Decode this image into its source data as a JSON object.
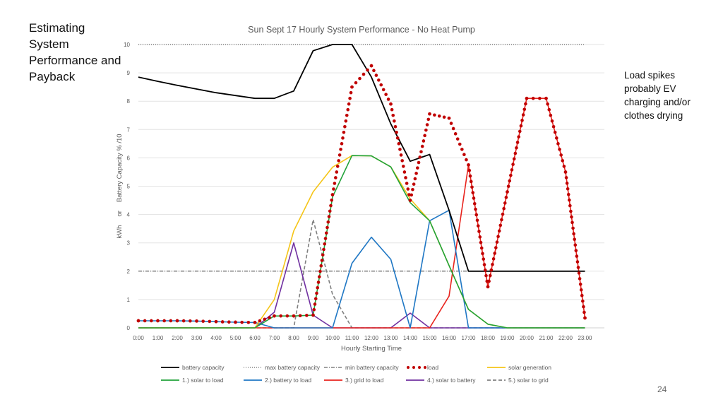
{
  "slide": {
    "title": "Estimating System Performance and Payback",
    "note": "Load spikes probably EV charging and/or clothes drying",
    "page_number": "24"
  },
  "chart_data": {
    "type": "line",
    "title": "Sun Sept 17 Hourly System Performance - No Heat Pump",
    "xlabel": "Hourly Starting Time",
    "ylabel": "kWh   or   Battery Capacity % /10",
    "ylabel_parts": [
      "kWh",
      "or",
      "Battery Capacity % /10"
    ],
    "ylim": [
      0,
      10
    ],
    "yticks": [
      0,
      1,
      2,
      3,
      4,
      5,
      6,
      7,
      8,
      9,
      10
    ],
    "grid": true,
    "legend_position": "bottom",
    "categories": [
      "0:00",
      "1:00",
      "2:00",
      "3:00",
      "4:00",
      "5:00",
      "6:00",
      "7:00",
      "8:00",
      "9:00",
      "10:00",
      "11:00",
      "12:00",
      "13:00",
      "14:00",
      "15:00",
      "16:00",
      "17:00",
      "18:00",
      "19:00",
      "20:00",
      "21:00",
      "22:00",
      "23:00"
    ],
    "series": [
      {
        "name": "battery capacity",
        "color": "#000000",
        "style": "solid",
        "values": [
          8.85,
          8.7,
          8.56,
          8.43,
          8.3,
          8.2,
          8.1,
          8.1,
          8.36,
          9.78,
          10.0,
          10.0,
          8.85,
          7.2,
          5.88,
          6.12,
          4.15,
          2.0,
          2.0,
          2.0,
          2.0,
          2.0,
          2.0,
          2.0
        ]
      },
      {
        "name": "max battery capacity",
        "color": "#404040",
        "style": "dotted",
        "values": [
          10,
          10,
          10,
          10,
          10,
          10,
          10,
          10,
          10,
          10,
          10,
          10,
          10,
          10,
          10,
          10,
          10,
          10,
          10,
          10,
          10,
          10,
          10,
          10
        ]
      },
      {
        "name": "min battery capacity",
        "color": "#404040",
        "style": "dashdot",
        "values": [
          2,
          2,
          2,
          2,
          2,
          2,
          2,
          2,
          2,
          2,
          2,
          2,
          2,
          2,
          2,
          2,
          2,
          2,
          2,
          2,
          2,
          2,
          2,
          2
        ]
      },
      {
        "name": "load",
        "color": "#c00000",
        "style": "dots",
        "values": [
          0.25,
          0.25,
          0.25,
          0.24,
          0.22,
          0.2,
          0.19,
          0.42,
          0.42,
          0.45,
          4.7,
          8.5,
          9.25,
          7.9,
          4.5,
          7.55,
          7.4,
          5.75,
          1.45,
          4.8,
          8.1,
          8.1,
          5.5,
          0.35
        ]
      },
      {
        "name": "solar generation",
        "color": "#f5c518",
        "style": "solid",
        "values": [
          0,
          0,
          0,
          0,
          0,
          0,
          0,
          1.0,
          3.42,
          4.8,
          5.67,
          6.08,
          6.07,
          5.68,
          4.55,
          3.78,
          2.2,
          0.65,
          0.13,
          0,
          0,
          0,
          0,
          0
        ]
      },
      {
        "name": "1.) solar to load",
        "color": "#21a33a",
        "style": "solid",
        "values": [
          0,
          0,
          0,
          0,
          0,
          0,
          0,
          0.42,
          0.42,
          0.45,
          4.62,
          6.08,
          6.07,
          5.68,
          4.42,
          3.78,
          2.2,
          0.65,
          0.13,
          0,
          0,
          0,
          0,
          0
        ]
      },
      {
        "name": "2.) battery to load",
        "color": "#1f77c4",
        "style": "solid",
        "values": [
          0.25,
          0.25,
          0.25,
          0.24,
          0.22,
          0.2,
          0.19,
          0,
          0,
          0,
          0,
          2.28,
          3.2,
          2.42,
          0,
          3.78,
          4.15,
          0,
          0,
          0,
          0,
          0,
          0,
          0
        ]
      },
      {
        "name": "3.) grid to load",
        "color": "#e8231d",
        "style": "solid",
        "values": [
          0,
          0,
          0,
          0,
          0,
          0,
          0,
          0,
          0,
          0,
          0,
          0,
          0,
          0,
          0,
          0,
          1.12,
          5.75,
          1.45,
          4.8,
          8.1,
          8.1,
          5.5,
          0.35
        ]
      },
      {
        "name": "4.) solar to battery",
        "color": "#7030a0",
        "style": "solid",
        "values": [
          0,
          0,
          0,
          0,
          0,
          0,
          0,
          0.55,
          3.0,
          0.45,
          0,
          0,
          0,
          0,
          0.52,
          0,
          0,
          0,
          0,
          0,
          0,
          0,
          0,
          0
        ]
      },
      {
        "name": "5.) solar to grid",
        "color": "#808080",
        "style": "dashed",
        "values": [
          0,
          0,
          0,
          0,
          0,
          0,
          0,
          0,
          0,
          3.82,
          1.18,
          0,
          0,
          0,
          0,
          0,
          0,
          0,
          0,
          0,
          0,
          0,
          0,
          0
        ]
      }
    ]
  }
}
